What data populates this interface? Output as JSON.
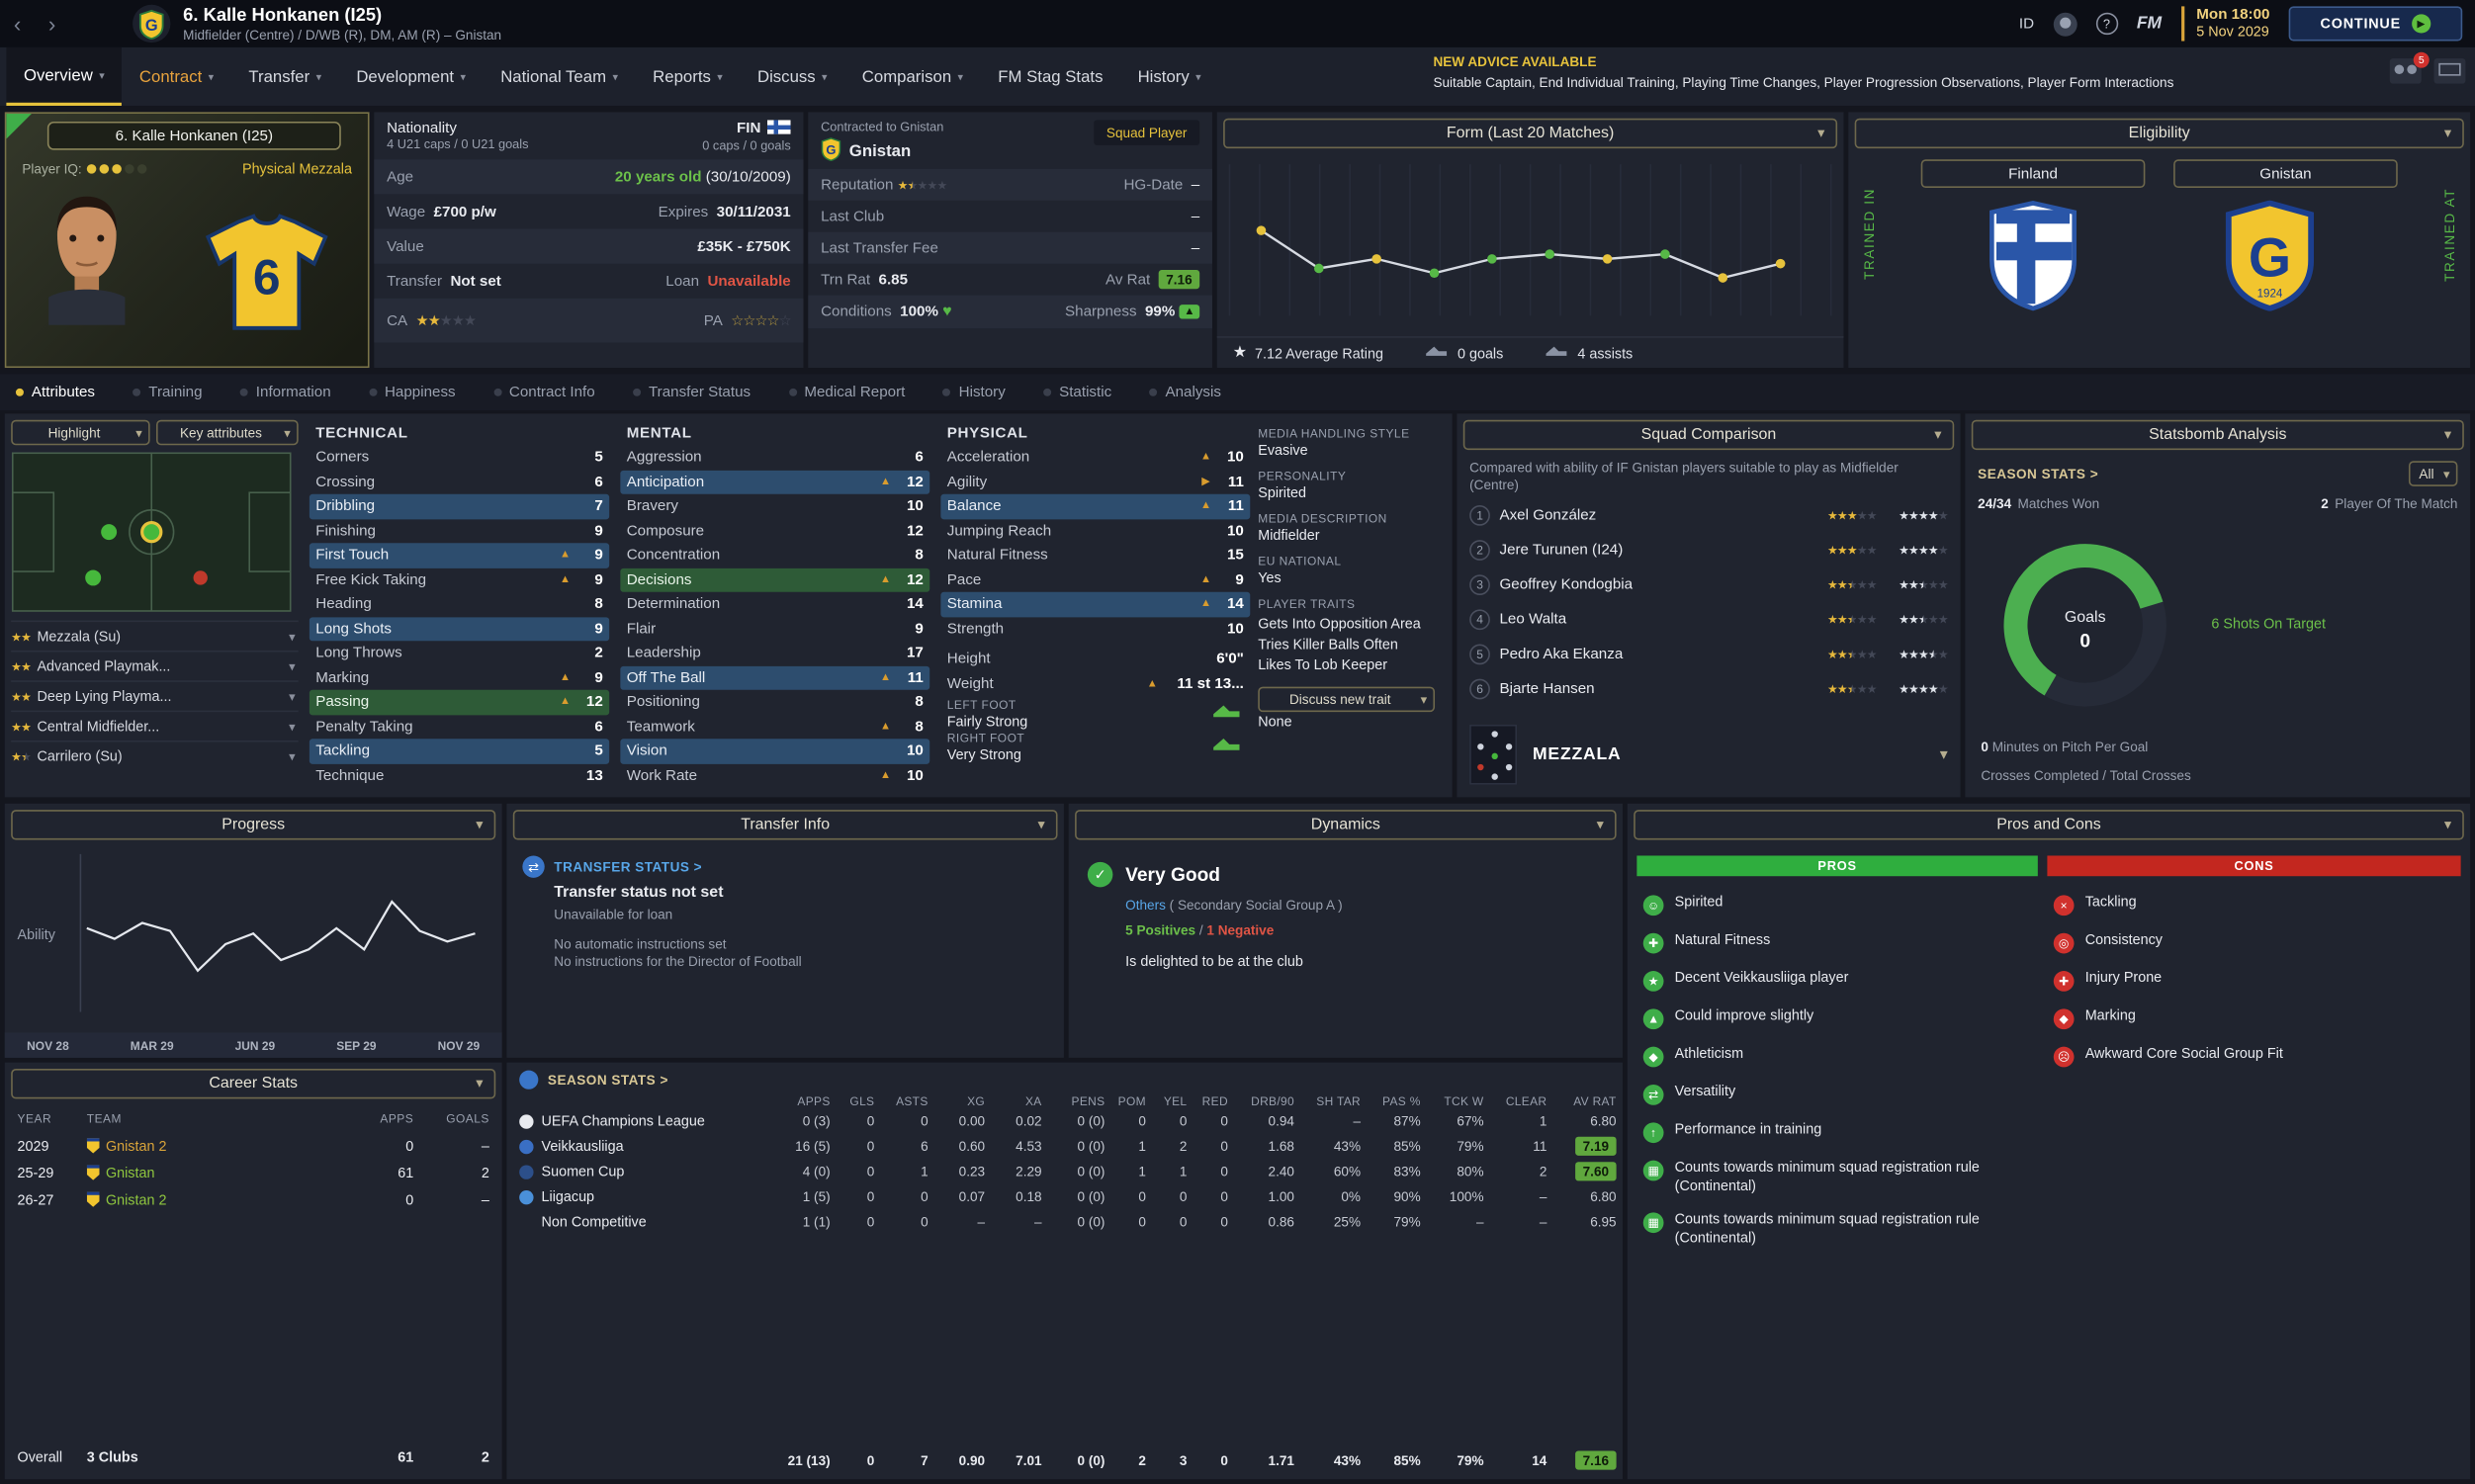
{
  "icons": {
    "back": "‹",
    "forward": "›",
    "chevron_down": "▾",
    "play": "▶",
    "star": "★",
    "star_hollow": "☆",
    "heart": "♥",
    "check": "✓",
    "up_arrow": "▲",
    "right_arrow": "▶",
    "help": "?",
    "transfer_arrows": "⇄"
  },
  "topbar": {
    "title": "6. Kalle Honkanen (I25)",
    "subtitle": "Midfielder (Centre) / D/WB (R), DM, AM (R) – Gnistan",
    "id_label": "ID",
    "fm_label": "FM",
    "clock": "Mon 18:00",
    "date": "5 Nov 2029",
    "continue_label": "CONTINUE",
    "notif_count": "5"
  },
  "nav": {
    "tabs": [
      {
        "label": "Overview",
        "dropdown": true,
        "active": true
      },
      {
        "label": "Contract",
        "dropdown": true,
        "highlight": true
      },
      {
        "label": "Transfer",
        "dropdown": true
      },
      {
        "label": "Development",
        "dropdown": true
      },
      {
        "label": "National Team",
        "dropdown": true
      },
      {
        "label": "Reports",
        "dropdown": true
      },
      {
        "label": "Discuss",
        "dropdown": true
      },
      {
        "label": "Comparison",
        "dropdown": true
      },
      {
        "label": "FM Stag Stats",
        "dropdown": false
      },
      {
        "label": "History",
        "dropdown": true
      }
    ],
    "advice_title": "NEW ADVICE AVAILABLE",
    "advice_text": "Suitable Captain, End Individual Training, Playing Time Changes, Player Progression Observations, Player Form Interactions"
  },
  "player_card": {
    "name": "6. Kalle Honkanen (I25)",
    "iq_label": "Player IQ:",
    "iq_filled": 3,
    "iq_total": 5,
    "role_label": "Physical Mezzala",
    "shirt_number": "6"
  },
  "details": {
    "nationality_label": "Nationality",
    "nationality_value": "FIN",
    "caps_u21": "4 U21 caps / 0 U21 goals",
    "caps": "0 caps / 0 goals",
    "age_label": "Age",
    "age_value": "20 years old",
    "dob": "(30/10/2009)",
    "wage_label": "Wage",
    "wage": "£700 p/w",
    "expires_label": "Expires",
    "expires": "30/11/2031",
    "value_label": "Value",
    "value": "£35K - £750K",
    "transfer_label": "Transfer",
    "transfer_status": "Not set",
    "loan_label": "Loan",
    "loan_status": "Unavailable",
    "ca_label": "CA",
    "pa_label": "PA",
    "ca_stars": 2,
    "pa_stars": 4
  },
  "contract": {
    "contracted_to": "Contracted to Gnistan",
    "club": "Gnistan",
    "squad_status": "Squad Player",
    "reputation_label": "Reputation",
    "reputation_stars": 1.5,
    "hg_date_label": "HG-Date",
    "hg_date": "–",
    "last_club_label": "Last Club",
    "last_club": "–",
    "last_fee_label": "Last Transfer Fee",
    "last_fee": "–",
    "trn_rat_label": "Trn Rat",
    "trn_rat": "6.85",
    "av_rat_label": "Av Rat",
    "av_rat": "7.16",
    "conditions_label": "Conditions",
    "conditions": "100%",
    "sharpness_label": "Sharpness",
    "sharpness": "99%"
  },
  "form": {
    "title": "Form (Last 20 Matches)",
    "avg_rating": "7.12 Average Rating",
    "goals": "0 goals",
    "assists": "4 assists",
    "ylim": [
      6.5,
      7.7
    ],
    "points": [
      {
        "r": 7.4,
        "c": "y"
      },
      {
        "r": 7.0,
        "c": "g"
      },
      {
        "r": 7.1,
        "c": "y"
      },
      {
        "r": 6.95,
        "c": "g"
      },
      {
        "r": 7.1,
        "c": "g"
      },
      {
        "r": 7.15,
        "c": "g"
      },
      {
        "r": 7.1,
        "c": "y"
      },
      {
        "r": 7.15,
        "c": "g"
      },
      {
        "r": 6.9,
        "c": "y"
      },
      {
        "r": 7.05,
        "c": "y"
      }
    ]
  },
  "eligibility": {
    "title": "Eligibility",
    "nation_button": "Finland",
    "club_button": "Gnistan",
    "trained_in": "TRAINED IN",
    "trained_at": "TRAINED AT"
  },
  "subnav": {
    "items": [
      {
        "label": "Attributes",
        "active": true
      },
      {
        "label": "Training"
      },
      {
        "label": "Information"
      },
      {
        "label": "Happiness"
      },
      {
        "label": "Contract Info"
      },
      {
        "label": "Transfer Status"
      },
      {
        "label": "Medical Report"
      },
      {
        "label": "History"
      },
      {
        "label": "Statistic"
      },
      {
        "label": "Analysis"
      }
    ]
  },
  "highlight": {
    "highlight_label": "Highlight",
    "key_attributes_label": "Key attributes",
    "roles": [
      {
        "stars": 2,
        "name": "Mezzala (Su)"
      },
      {
        "stars": 2,
        "name": "Advanced Playmak..."
      },
      {
        "stars": 2,
        "name": "Deep Lying Playma..."
      },
      {
        "stars": 2,
        "name": "Central Midfielder..."
      },
      {
        "stars": 1.5,
        "name": "Carrilero (Su)"
      }
    ]
  },
  "attributes": {
    "technical_title": "TECHNICAL",
    "mental_title": "MENTAL",
    "physical_title": "PHYSICAL",
    "technical": [
      {
        "n": "Corners",
        "v": "5"
      },
      {
        "n": "Crossing",
        "v": "6"
      },
      {
        "n": "Dribbling",
        "v": "7",
        "hl": "b"
      },
      {
        "n": "Finishing",
        "v": "9"
      },
      {
        "n": "First Touch",
        "v": "9",
        "hl": "b",
        "a": "u"
      },
      {
        "n": "Free Kick Taking",
        "v": "9",
        "a": "u"
      },
      {
        "n": "Heading",
        "v": "8"
      },
      {
        "n": "Long Shots",
        "v": "9",
        "hl": "b"
      },
      {
        "n": "Long Throws",
        "v": "2"
      },
      {
        "n": "Marking",
        "v": "9",
        "a": "u"
      },
      {
        "n": "Passing",
        "v": "12",
        "hl": "g",
        "a": "u"
      },
      {
        "n": "Penalty Taking",
        "v": "6"
      },
      {
        "n": "Tackling",
        "v": "5",
        "hl": "b"
      },
      {
        "n": "Technique",
        "v": "13"
      }
    ],
    "mental": [
      {
        "n": "Aggression",
        "v": "6"
      },
      {
        "n": "Anticipation",
        "v": "12",
        "hl": "b",
        "a": "u"
      },
      {
        "n": "Bravery",
        "v": "10"
      },
      {
        "n": "Composure",
        "v": "12"
      },
      {
        "n": "Concentration",
        "v": "8"
      },
      {
        "n": "Decisions",
        "v": "12",
        "hl": "g",
        "a": "u"
      },
      {
        "n": "Determination",
        "v": "14"
      },
      {
        "n": "Flair",
        "v": "9"
      },
      {
        "n": "Leadership",
        "v": "17"
      },
      {
        "n": "Off The Ball",
        "v": "11",
        "hl": "b",
        "a": "u"
      },
      {
        "n": "Positioning",
        "v": "8"
      },
      {
        "n": "Teamwork",
        "v": "8",
        "a": "u"
      },
      {
        "n": "Vision",
        "v": "10",
        "hl": "b"
      },
      {
        "n": "Work Rate",
        "v": "10",
        "a": "u"
      }
    ],
    "physical": [
      {
        "n": "Acceleration",
        "v": "10",
        "a": "u"
      },
      {
        "n": "Agility",
        "v": "11",
        "a": "r"
      },
      {
        "n": "Balance",
        "v": "11",
        "hl": "b",
        "a": "u"
      },
      {
        "n": "Jumping Reach",
        "v": "10"
      },
      {
        "n": "Natural Fitness",
        "v": "15"
      },
      {
        "n": "Pace",
        "v": "9",
        "a": "u"
      },
      {
        "n": "Stamina",
        "v": "14",
        "hl": "b",
        "a": "u"
      },
      {
        "n": "Strength",
        "v": "10"
      }
    ]
  },
  "physique": {
    "height_label": "Height",
    "height": "6'0\"",
    "weight_label": "Weight",
    "weight": "11 st 13...",
    "left_foot_label": "LEFT FOOT",
    "left_foot": "Fairly Strong",
    "right_foot_label": "RIGHT FOOT",
    "right_foot": "Very Strong"
  },
  "media": {
    "handling_label": "MEDIA HANDLING STYLE",
    "handling": "Evasive",
    "personality_label": "PERSONALITY",
    "personality": "Spirited",
    "description_label": "MEDIA DESCRIPTION",
    "description": "Midfielder",
    "eu_label": "EU NATIONAL",
    "eu": "Yes",
    "traits_label": "PLAYER TRAITS",
    "traits": [
      "Gets Into Opposition Area",
      "Tries Killer Balls Often",
      "Likes To Lob Keeper"
    ],
    "discuss_label": "Discuss new trait",
    "discuss_value": "None"
  },
  "squad_comparison": {
    "title": "Squad Comparison",
    "description": "Compared with ability of IF Gnistan players suitable to play as Midfielder (Centre)",
    "players": [
      {
        "rank": "1",
        "name": "Axel González",
        "ca": 3,
        "pa": 4
      },
      {
        "rank": "2",
        "name": "Jere Turunen (I24)",
        "ca": 3,
        "pa": 4
      },
      {
        "rank": "3",
        "name": "Geoffrey Kondogbia",
        "ca": 2.5,
        "pa": 2.5
      },
      {
        "rank": "4",
        "name": "Leo Walta",
        "ca": 2.5,
        "pa": 2.5
      },
      {
        "rank": "5",
        "name": "Pedro Aka Ekanza",
        "ca": 2.5,
        "pa": 3.5
      },
      {
        "rank": "6",
        "name": "Bjarte Hansen",
        "ca": 2.5,
        "pa": 4
      }
    ],
    "role_label": "MEZZALA"
  },
  "statsbomb": {
    "title": "Statsbomb Analysis",
    "season_stats_label": "SEASON STATS >",
    "filter": "All",
    "matches_won_value": "24/34",
    "matches_won_label": "Matches Won",
    "potm_value": "2",
    "potm_label": "Player Of The Match",
    "gauge_label": "Goals",
    "gauge_value": "0",
    "gauge_pct": 62,
    "shots_on_target": "6 Shots On Target",
    "minutes_per_goal_value": "0",
    "minutes_per_goal_label": "Minutes on Pitch Per Goal",
    "crosses_label": "Crosses Completed / Total Crosses"
  },
  "progress": {
    "title": "Progress",
    "ylabel": "Ability",
    "x_labels": [
      "NOV 28",
      "MAR 29",
      "JUN 29",
      "SEP 29",
      "NOV 29"
    ],
    "points": [
      58,
      54,
      60,
      57,
      42,
      52,
      56,
      46,
      50,
      58,
      50,
      68,
      57,
      53,
      56
    ]
  },
  "career": {
    "title": "Career Stats",
    "columns": [
      "YEAR",
      "TEAM",
      "APPS",
      "GOALS"
    ],
    "rows": [
      {
        "year": "2029",
        "team": "Gnistan 2",
        "apps": "0",
        "goals": "–",
        "color": "#d9a43a"
      },
      {
        "year": "25-29",
        "team": "Gnistan",
        "apps": "61",
        "goals": "2",
        "color": "#8fc63f"
      },
      {
        "year": "26-27",
        "team": "Gnistan 2",
        "apps": "0",
        "goals": "–",
        "color": "#8fc63f"
      }
    ],
    "overall_label": "Overall",
    "overall_clubs": "3 Clubs",
    "overall_apps": "61",
    "overall_goals": "2"
  },
  "transfer_info": {
    "title": "Transfer Info",
    "status_label": "TRANSFER STATUS >",
    "status": "Transfer status not set",
    "line1": "Unavailable for loan",
    "line2": "No automatic instructions set",
    "line3": "No instructions for the Director of Football"
  },
  "dynamics": {
    "title": "Dynamics",
    "rating": "Very Good",
    "group_prefix": "Others",
    "group_suffix": " ( Secondary Social Group A )",
    "positives": "5 Positives",
    "separator": " / ",
    "negatives": "1 Negative",
    "note": "Is delighted to be at the club"
  },
  "season_stats": {
    "title": "SEASON STATS >",
    "columns": [
      "APPS",
      "GLS",
      "ASTS",
      "XG",
      "XA",
      "PENS",
      "POM",
      "YEL",
      "RED",
      "DRB/90",
      "SH TAR",
      "PAS %",
      "TCK W",
      "CLEAR",
      "AV RAT"
    ],
    "rows": [
      {
        "competition": "UEFA Champions League",
        "icon_color": "#e8eaef",
        "values": [
          "0 (3)",
          "0",
          "0",
          "0.00",
          "0.02",
          "0 (0)",
          "0",
          "0",
          "0",
          "0.94",
          "–",
          "87%",
          "67%",
          "1",
          "6.80"
        ],
        "rating_badge": false
      },
      {
        "competition": "Veikkausliiga",
        "icon_color": "#3a6fc4",
        "values": [
          "16 (5)",
          "0",
          "6",
          "0.60",
          "4.53",
          "0 (0)",
          "1",
          "2",
          "0",
          "1.68",
          "43%",
          "85%",
          "79%",
          "11",
          "7.19"
        ],
        "rating_badge": true
      },
      {
        "competition": "Suomen Cup",
        "icon_color": "#2c4f8a",
        "values": [
          "4 (0)",
          "0",
          "1",
          "0.23",
          "2.29",
          "0 (0)",
          "1",
          "1",
          "0",
          "2.40",
          "60%",
          "83%",
          "80%",
          "2",
          "7.60"
        ],
        "rating_badge": true
      },
      {
        "competition": "Liigacup",
        "icon_color": "#4a90d9",
        "values": [
          "1 (5)",
          "0",
          "0",
          "0.07",
          "0.18",
          "0 (0)",
          "0",
          "0",
          "0",
          "1.00",
          "0%",
          "90%",
          "100%",
          "–",
          "6.80"
        ],
        "rating_badge": false
      },
      {
        "competition": "Non Competitive",
        "icon_color": null,
        "values": [
          "1 (1)",
          "0",
          "0",
          "–",
          "–",
          "0 (0)",
          "0",
          "0",
          "0",
          "0.86",
          "25%",
          "79%",
          "–",
          "–",
          "6.95"
        ],
        "rating_badge": false
      }
    ],
    "totals": {
      "values": [
        "21 (13)",
        "0",
        "7",
        "0.90",
        "7.01",
        "0 (0)",
        "2",
        "3",
        "0",
        "1.71",
        "43%",
        "85%",
        "79%",
        "14",
        "7.16"
      ],
      "rating_badge": true
    }
  },
  "pros_cons": {
    "title": "Pros and Cons",
    "pros_label": "PROS",
    "cons_label": "CONS",
    "pros": [
      {
        "label": "Spirited",
        "icon": "☺"
      },
      {
        "label": "Natural Fitness",
        "icon": "✚"
      },
      {
        "label": "Decent Veikkausliiga player",
        "icon": "★"
      },
      {
        "label": "Could improve slightly",
        "icon": "▲"
      },
      {
        "label": "Athleticism",
        "icon": "◆"
      },
      {
        "label": "Versatility",
        "icon": "⇄"
      },
      {
        "label": "Performance in training",
        "icon": "↑"
      },
      {
        "label": "Counts towards minimum squad registration rule (Continental)",
        "icon": "▦"
      },
      {
        "label": "Counts towards minimum squad registration rule (Continental)",
        "icon": "▦"
      }
    ],
    "cons": [
      {
        "label": "Tackling",
        "icon": "×"
      },
      {
        "label": "Consistency",
        "icon": "◎"
      },
      {
        "label": "Injury Prone",
        "icon": "✚"
      },
      {
        "label": "Marking",
        "icon": "◆"
      },
      {
        "label": "Awkward Core Social Group Fit",
        "icon": "☹"
      }
    ]
  }
}
